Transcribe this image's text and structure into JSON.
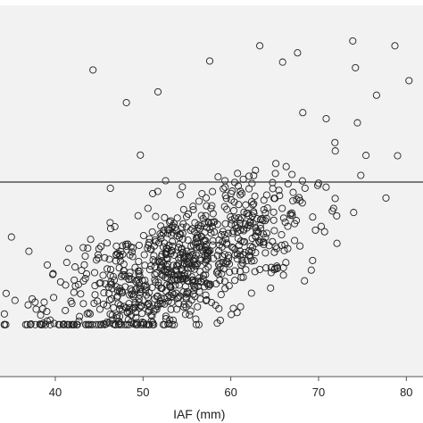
{
  "chart_data": {
    "type": "scatter",
    "title": "",
    "xlabel": "IAF (mm)",
    "ylabel": "",
    "xlim": [
      33.7,
      81.9
    ],
    "ylim": [
      0,
      1
    ],
    "x_ticks": [
      40,
      50,
      60,
      70,
      80
    ],
    "grid": false,
    "legend": "none",
    "reference_line": {
      "orientation": "horizontal",
      "y": 0.476,
      "color": "#333333"
    },
    "colors": {
      "plot_background": "#f2f2f2",
      "marker_stroke": "#222222",
      "axis": "#555555"
    },
    "marker": {
      "shape": "circle",
      "filled": false
    },
    "n_points": 900,
    "highlighted_points": [
      {
        "x": 44.3,
        "y": 0.174
      },
      {
        "x": 48.1,
        "y": 0.262
      },
      {
        "x": 51.7,
        "y": 0.233
      },
      {
        "x": 57.6,
        "y": 0.15
      },
      {
        "x": 63.3,
        "y": 0.109
      },
      {
        "x": 65.9,
        "y": 0.153
      },
      {
        "x": 67.6,
        "y": 0.128
      },
      {
        "x": 73.9,
        "y": 0.096
      },
      {
        "x": 78.7,
        "y": 0.109
      },
      {
        "x": 80.3,
        "y": 0.203
      },
      {
        "x": 76.6,
        "y": 0.242
      },
      {
        "x": 74.2,
        "y": 0.168
      },
      {
        "x": 68.2,
        "y": 0.289
      },
      {
        "x": 79.0,
        "y": 0.405
      },
      {
        "x": 75.4,
        "y": 0.404
      },
      {
        "x": 71.9,
        "y": 0.392
      },
      {
        "x": 74.0,
        "y": 0.558
      },
      {
        "x": 36.9,
        "y": 0.807
      },
      {
        "x": 34.4,
        "y": 0.776
      },
      {
        "x": 35.0,
        "y": 0.624
      },
      {
        "x": 68.4,
        "y": 0.742
      },
      {
        "x": 72.1,
        "y": 0.641
      },
      {
        "x": 54.9,
        "y": 0.785
      },
      {
        "x": 47.1,
        "y": 0.783
      },
      {
        "x": 40.6,
        "y": 0.745
      }
    ]
  }
}
